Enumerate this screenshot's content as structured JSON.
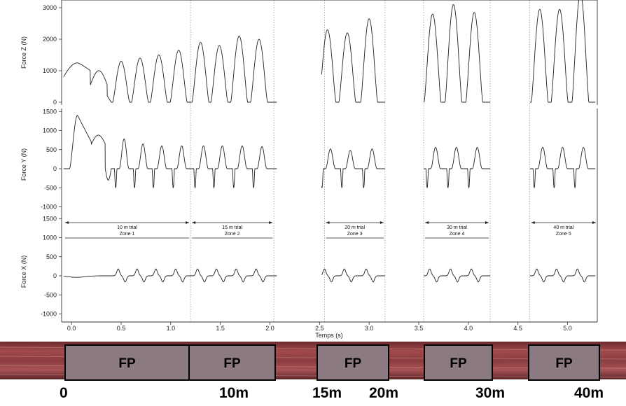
{
  "chart_data": {
    "type": "line",
    "xlabel": "Temps (s)",
    "xlim": [
      -0.1,
      5.3
    ],
    "x_ticks": [
      "0.0",
      "0.5",
      "1.0",
      "1.5",
      "2.0",
      "2.5",
      "3.0",
      "3.5",
      "4.0",
      "4.5",
      "5.0"
    ],
    "panels": [
      {
        "ylabel": "Force Z (N)",
        "ylim": [
          0,
          3300
        ],
        "y_ticks": [
          "0",
          "1000",
          "2000",
          "3000"
        ],
        "peaks_x": [
          0.06,
          0.28,
          0.5,
          0.69,
          0.88,
          1.08,
          1.3,
          1.49,
          1.69,
          1.89,
          2.58,
          2.78,
          3.0,
          3.64,
          3.85,
          4.06,
          4.72,
          4.92,
          5.13
        ],
        "peaks_y": [
          1250,
          1000,
          1300,
          1400,
          1500,
          1650,
          1900,
          1800,
          2100,
          2000,
          2300,
          2200,
          2650,
          2800,
          3100,
          2850,
          2950,
          2950,
          3450
        ]
      },
      {
        "ylabel": "Force Y (N)",
        "ylim": [
          -1000,
          1600
        ],
        "y_ticks": [
          "-1000",
          "-500",
          "0",
          "500",
          "1000",
          "1500"
        ],
        "peaks_y": [
          1400,
          880,
          780,
          650,
          600,
          600,
          600,
          600,
          600,
          580,
          520,
          480,
          520,
          560,
          560,
          560,
          560,
          560,
          560
        ]
      },
      {
        "ylabel": "Force X (N)",
        "ylim": [
          -1050,
          1550
        ],
        "y_ticks": [
          "-1000",
          "-500",
          "0",
          "500",
          "1000",
          "1500"
        ],
        "zones": [
          {
            "label": "10 m trial",
            "zone": "Zone 1",
            "x0": -0.08,
            "x1": 1.2
          },
          {
            "label": "15 m trial",
            "zone": "Zone 2",
            "x0": 1.2,
            "x1": 2.04
          },
          {
            "label": "20 m trial",
            "zone": "Zone 3",
            "x0": 2.55,
            "x1": 3.16
          },
          {
            "label": "30 m trial",
            "zone": "Zone 4",
            "x0": 3.55,
            "x1": 4.22
          },
          {
            "label": "40 m trial",
            "zone": "Zone 5",
            "x0": 4.62,
            "x1": 5.3
          }
        ]
      }
    ]
  },
  "track": {
    "plates": [
      "FP",
      "FP",
      "FP",
      "FP",
      "FP"
    ],
    "distance_labels": [
      "0",
      "10m",
      "15m",
      "20m",
      "30m",
      "40m"
    ]
  }
}
